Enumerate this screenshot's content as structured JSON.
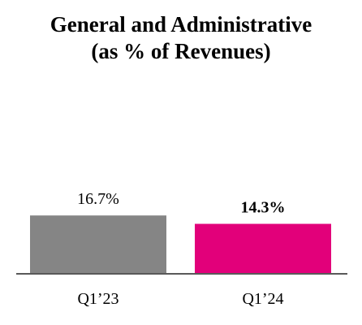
{
  "chart_data": {
    "type": "bar",
    "title_lines": [
      "General and Administrative",
      "(as % of Revenues)"
    ],
    "categories": [
      "Q1’23",
      "Q1’24"
    ],
    "values": [
      16.7,
      14.3
    ],
    "value_labels": [
      "16.7%",
      "14.3%"
    ],
    "value_label_bold": [
      false,
      true
    ],
    "colors": [
      "#858585",
      "#e2007a"
    ],
    "axis_color": "#595959",
    "xlabel": "",
    "ylabel": "",
    "grid": false,
    "legend": "none"
  }
}
